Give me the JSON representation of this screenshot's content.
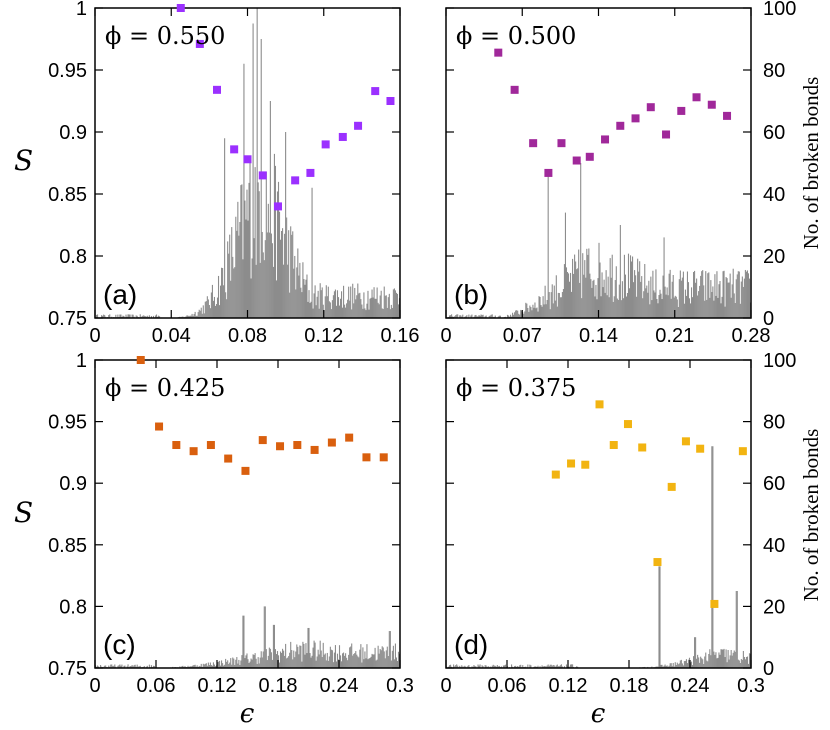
{
  "chart_data": [
    {
      "type": "scatter",
      "panel_label": "(a)",
      "annotation": "ϕ = 0.550",
      "xlim": [
        0,
        0.16
      ],
      "xticks": [
        "0",
        "0.04",
        "0.08",
        "0.12",
        "0.16"
      ],
      "ylim": [
        0.75,
        1
      ],
      "yticks": [
        "1",
        "0.95",
        "0.9",
        "0.85",
        "0.8",
        "0.75"
      ],
      "y2lim": [
        0,
        100
      ],
      "y2ticks": [
        "100",
        "80",
        "60",
        "40",
        "20",
        "0"
      ],
      "marker_color": "#9b30ff",
      "bar_color": "#8c8c8c",
      "scatter": {
        "x": [
          0.045,
          0.055,
          0.064,
          0.073,
          0.08,
          0.088,
          0.096,
          0.105,
          0.113,
          0.121,
          0.13,
          0.138,
          0.147,
          0.155
        ],
        "y": [
          1.0,
          0.971,
          0.934,
          0.886,
          0.878,
          0.865,
          0.84,
          0.861,
          0.867,
          0.89,
          0.896,
          0.905,
          0.933,
          0.925
        ]
      },
      "bars_profile": {
        "onset": 0.035,
        "peak": 0.085,
        "peak_width": 0.022,
        "peak_height": 55,
        "tail_height": 10,
        "spikes": [
          [
            0.085,
            100
          ],
          [
            0.083,
            95
          ],
          [
            0.078,
            82
          ],
          [
            0.087,
            90
          ],
          [
            0.092,
            70
          ],
          [
            0.1,
            60
          ],
          [
            0.068,
            58
          ],
          [
            0.114,
            42
          ]
        ]
      }
    },
    {
      "type": "scatter",
      "panel_label": "(b)",
      "annotation": "ϕ = 0.500",
      "xlim": [
        0,
        0.28
      ],
      "xticks": [
        "0",
        "0.07",
        "0.14",
        "0.21",
        "0.28"
      ],
      "ylim": [
        0.75,
        1
      ],
      "yticks": [
        "1",
        "0.95",
        "0.9",
        "0.85",
        "0.8",
        "0.75"
      ],
      "y2lim": [
        0,
        100
      ],
      "y2ticks": [
        "100",
        "80",
        "60",
        "40",
        "20",
        "0"
      ],
      "marker_color": "#a0289a",
      "bar_color": "#8c8c8c",
      "scatter": {
        "x": [
          0.048,
          0.063,
          0.08,
          0.094,
          0.106,
          0.12,
          0.132,
          0.146,
          0.16,
          0.174,
          0.188,
          0.202,
          0.216,
          0.23,
          0.244,
          0.258
        ],
        "y": [
          0.964,
          0.934,
          0.891,
          0.867,
          0.891,
          0.877,
          0.88,
          0.894,
          0.905,
          0.911,
          0.92,
          0.898,
          0.917,
          0.928,
          0.922,
          0.913
        ]
      },
      "bars_profile": {
        "onset": 0.05,
        "peak": 0.13,
        "peak_width": 0.09,
        "peak_height": 22,
        "tail_height": 14,
        "spikes": [
          [
            0.094,
            47
          ],
          [
            0.124,
            50
          ],
          [
            0.11,
            34
          ],
          [
            0.16,
            30
          ],
          [
            0.2,
            26
          ]
        ]
      }
    },
    {
      "type": "scatter",
      "panel_label": "(c)",
      "annotation": "ϕ = 0.425",
      "xlim": [
        0,
        0.3
      ],
      "xticks": [
        "0",
        "0.06",
        "0.12",
        "0.18",
        "0.24",
        "0.3"
      ],
      "xlabel": "ϵ",
      "ylim": [
        0.75,
        1
      ],
      "yticks": [
        "1",
        "0.95",
        "0.9",
        "0.85",
        "0.8",
        "0.75"
      ],
      "y2lim": [
        0,
        100
      ],
      "y2ticks": [
        "100",
        "80",
        "60",
        "40",
        "20",
        "0"
      ],
      "marker_color": "#d95f0e",
      "bar_color": "#8c8c8c",
      "scatter": {
        "x": [
          0.045,
          0.063,
          0.08,
          0.097,
          0.114,
          0.131,
          0.148,
          0.165,
          0.182,
          0.199,
          0.216,
          0.233,
          0.25,
          0.267,
          0.284
        ],
        "y": [
          1.0,
          0.946,
          0.931,
          0.926,
          0.931,
          0.92,
          0.91,
          0.935,
          0.93,
          0.931,
          0.927,
          0.933,
          0.937,
          0.921,
          0.921
        ]
      },
      "bars_profile": {
        "onset": 0.06,
        "peak": 0.2,
        "peak_width": 0.12,
        "peak_height": 8,
        "tail_height": 7,
        "spikes": [
          [
            0.146,
            17
          ],
          [
            0.167,
            20
          ],
          [
            0.176,
            14
          ],
          [
            0.21,
            13
          ],
          [
            0.29,
            12
          ]
        ]
      }
    },
    {
      "type": "scatter",
      "panel_label": "(d)",
      "annotation": "ϕ = 0.375",
      "xlim": [
        0,
        0.3
      ],
      "xticks": [
        "0",
        "0.06",
        "0.12",
        "0.18",
        "0.24",
        "0.3"
      ],
      "xlabel": "ϵ",
      "ylim": [
        0.75,
        1
      ],
      "yticks": [
        "1",
        "0.95",
        "0.9",
        "0.85",
        "0.8",
        "0.75"
      ],
      "y2lim": [
        0,
        100
      ],
      "y2ticks": [
        "100",
        "80",
        "60",
        "40",
        "20",
        "0"
      ],
      "marker_color": "#f2b411",
      "bar_color": "#8c8c8c",
      "scatter": {
        "x": [
          0.108,
          0.123,
          0.137,
          0.151,
          0.165,
          0.179,
          0.193,
          0.208,
          0.222,
          0.236,
          0.25,
          0.264,
          0.292
        ],
        "y": [
          0.907,
          0.916,
          0.915,
          0.964,
          0.931,
          0.948,
          0.929,
          0.836,
          0.897,
          0.934,
          0.928,
          0.802,
          0.926
        ]
      },
      "bars_profile": {
        "onset": 0.13,
        "peak": 0.27,
        "peak_width": 0.05,
        "peak_height": 6,
        "tail_height": 3,
        "spikes": [
          [
            0.21,
            33
          ],
          [
            0.262,
            72
          ],
          [
            0.286,
            25
          ],
          [
            0.245,
            10
          ]
        ]
      }
    }
  ],
  "labels": {
    "y_left": "S",
    "x_bottom": "ϵ",
    "y_right": "No. of broken bonds"
  }
}
